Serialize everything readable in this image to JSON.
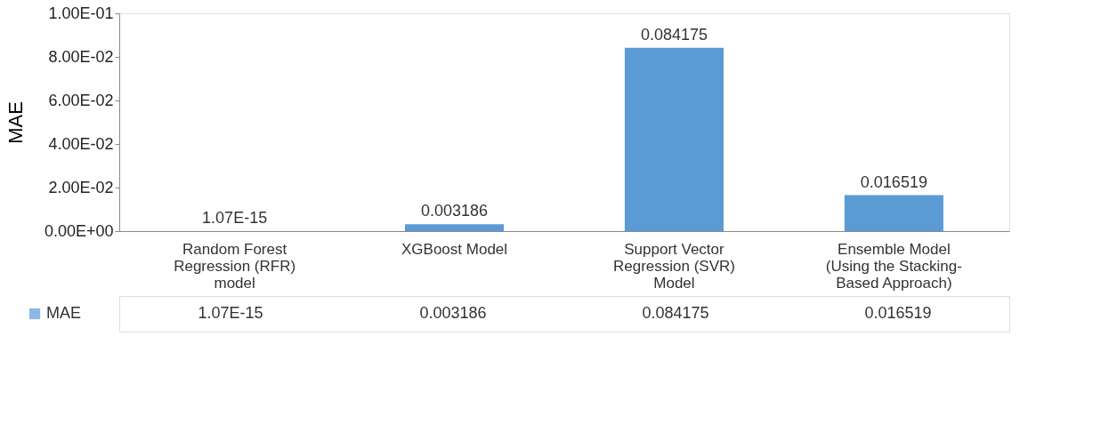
{
  "chart_data": {
    "type": "bar",
    "ylabel": "MAE",
    "categories": [
      "Random Forest Regression (RFR) model",
      "XGBoost Model",
      "Support Vector Regression (SVR) Model",
      "Ensemble Model (Using the Stacking-Based Approach)"
    ],
    "series": [
      {
        "name": "MAE",
        "color": "#5b9bd5",
        "values": [
          1.07e-15,
          0.003186,
          0.084175,
          0.016519
        ],
        "value_labels": [
          "1.07E-15",
          "0.003186",
          "0.084175",
          "0.016519"
        ]
      }
    ],
    "ylim": [
      0,
      0.1
    ],
    "yticks": [
      {
        "value": 0,
        "label": "0.00E+00"
      },
      {
        "value": 0.02,
        "label": "2.00E-02"
      },
      {
        "value": 0.04,
        "label": "4.00E-02"
      },
      {
        "value": 0.06,
        "label": "6.00E-02"
      },
      {
        "value": 0.08,
        "label": "8.00E-02"
      },
      {
        "value": 0.1,
        "label": "1.00E-01"
      }
    ],
    "grid": false,
    "legend": "bottom"
  }
}
